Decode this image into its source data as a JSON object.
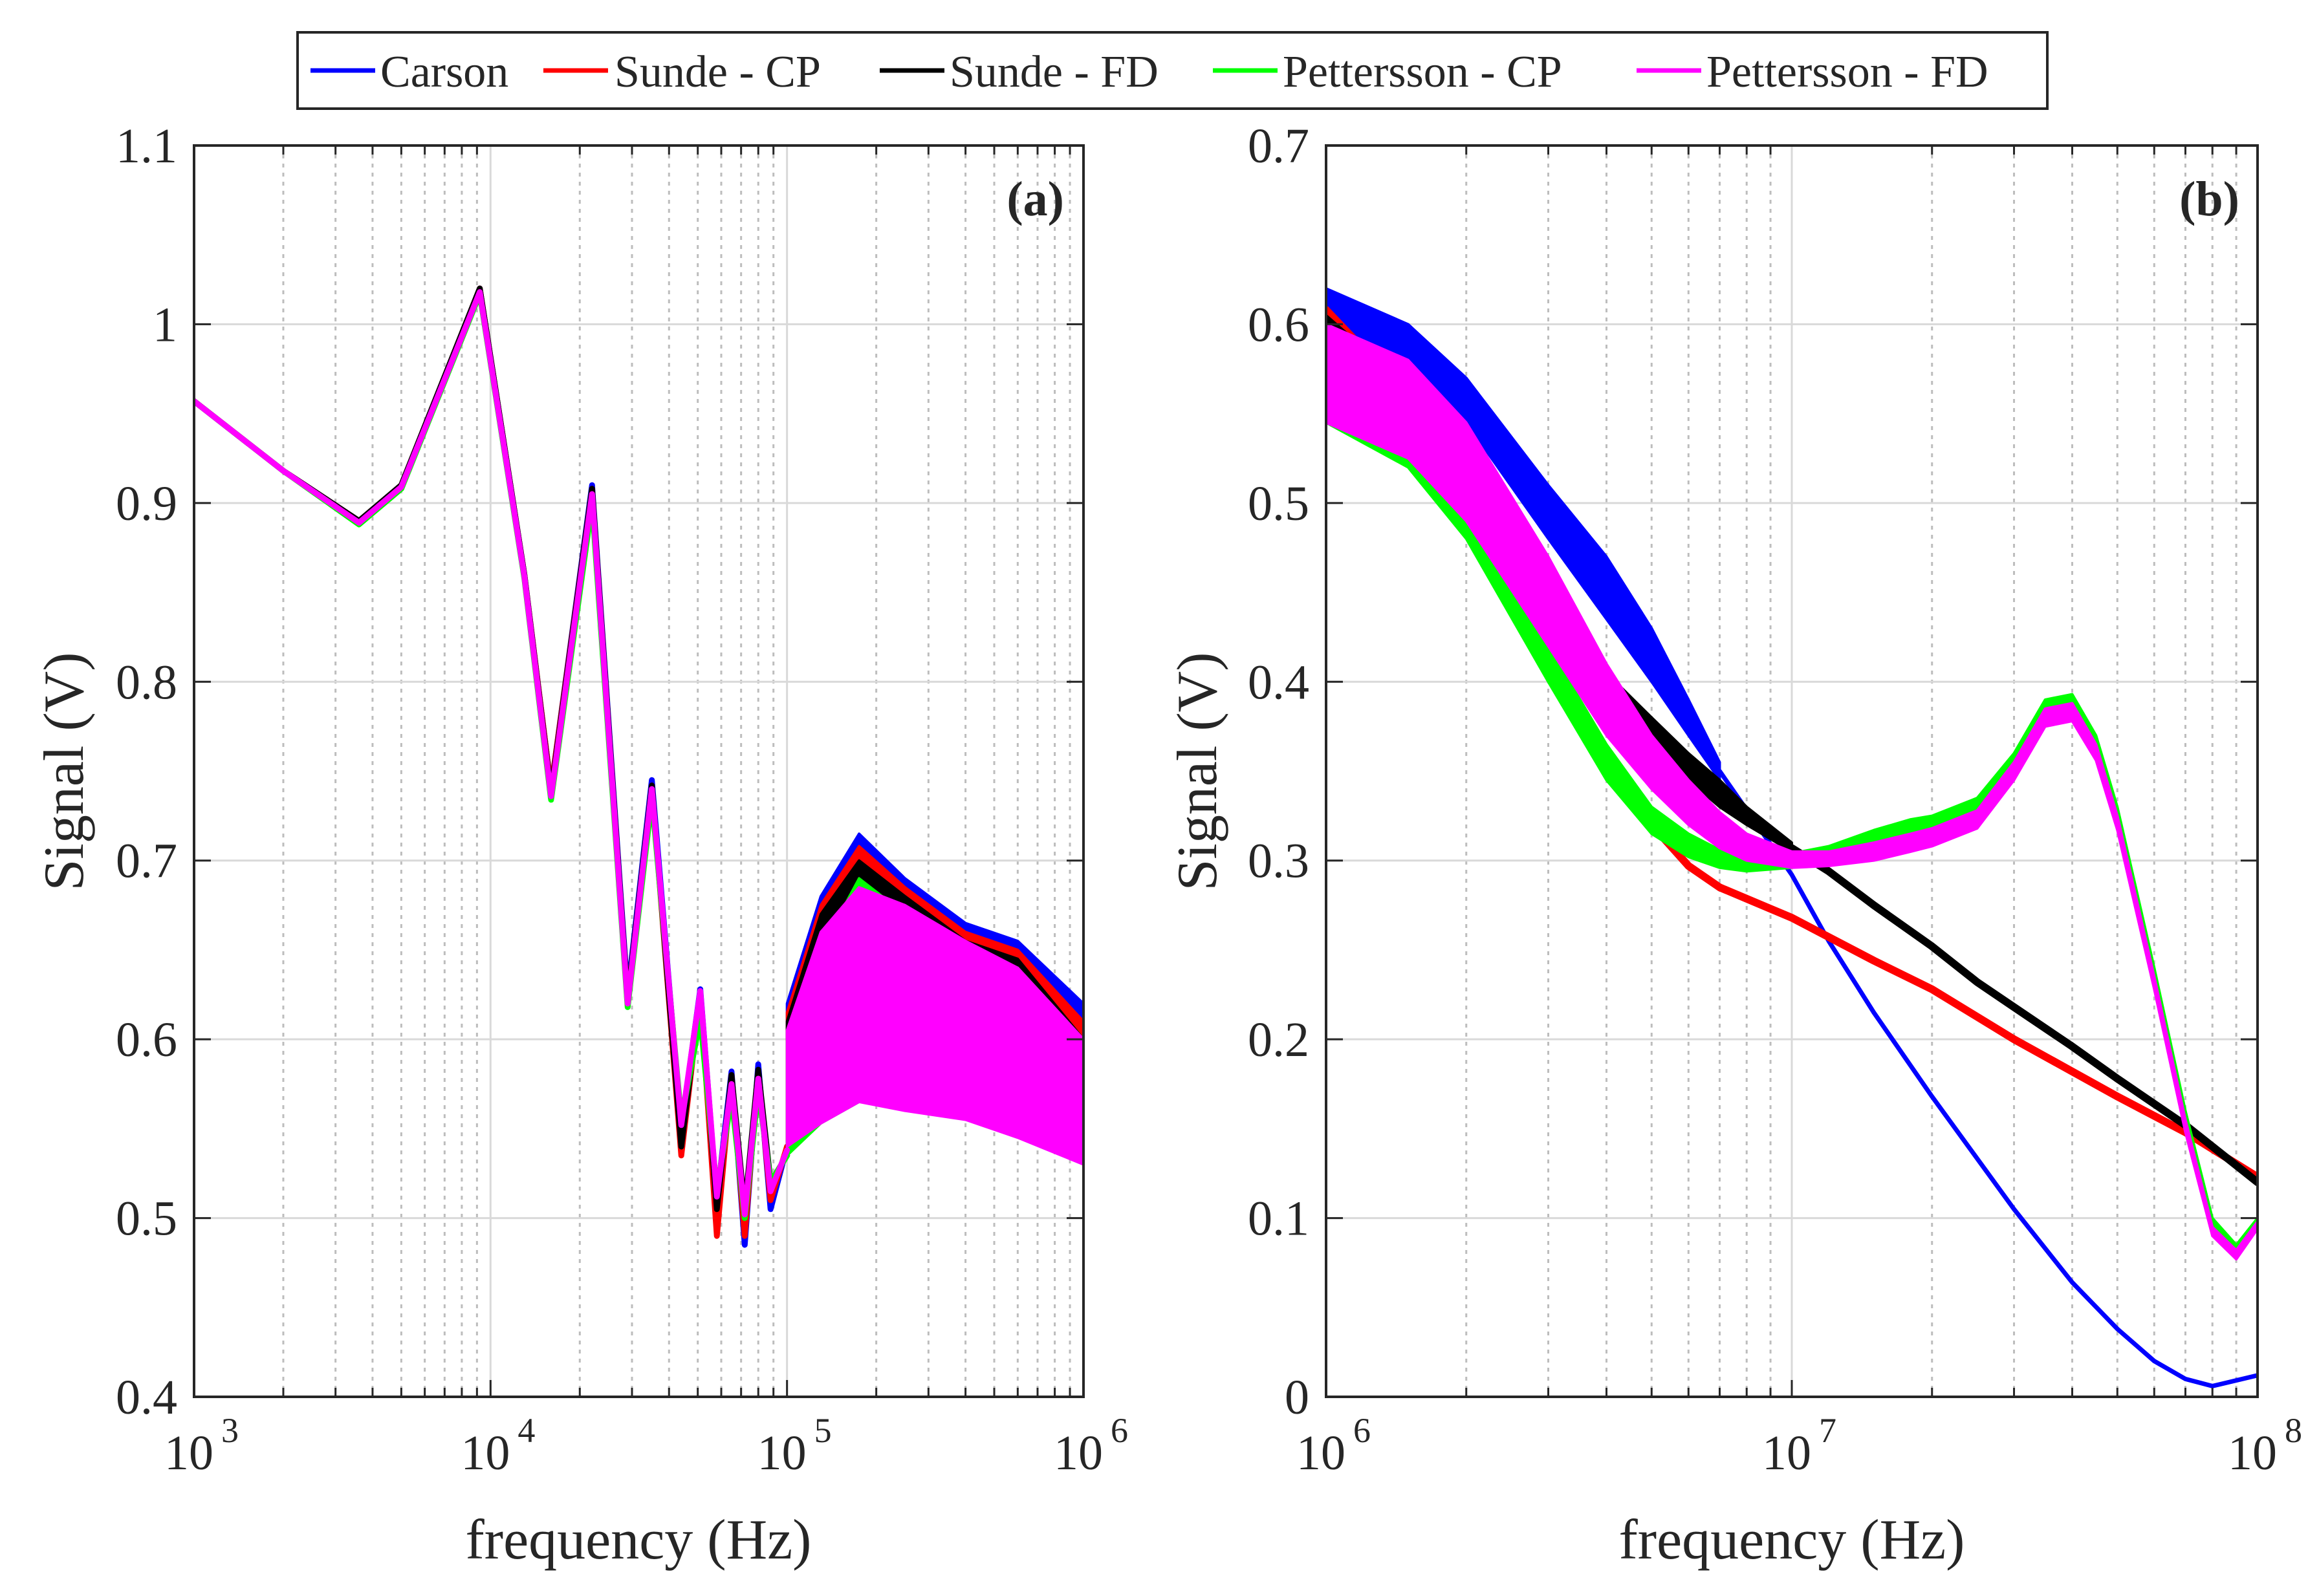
{
  "legend": [
    {
      "label": "Carson",
      "color": "#0000ff"
    },
    {
      "label": "Sunde - CP",
      "color": "#ff0000"
    },
    {
      "label": "Sunde - FD",
      "color": "#000000"
    },
    {
      "label": "Pettersson - CP",
      "color": "#00ff00"
    },
    {
      "label": "Pettersson - FD",
      "color": "#ff00ff"
    }
  ],
  "chart_data": [
    {
      "type": "line",
      "panel": "(a)",
      "xlabel": "frequency (Hz)",
      "ylabel": "Signal (V)",
      "xscale": "log",
      "xlim": [
        1000,
        1000000
      ],
      "ylim": [
        0.4,
        1.1
      ],
      "xticks": [
        {
          "value": 1000,
          "mantissa": "10",
          "exp": "3"
        },
        {
          "value": 10000,
          "mantissa": "10",
          "exp": "4"
        },
        {
          "value": 100000,
          "mantissa": "10",
          "exp": "5"
        },
        {
          "value": 1000000,
          "mantissa": "10",
          "exp": "6"
        }
      ],
      "yticks": [
        {
          "value": 0.4,
          "label": "0.4"
        },
        {
          "value": 0.5,
          "label": "0.5"
        },
        {
          "value": 0.6,
          "label": "0.6"
        },
        {
          "value": 0.7,
          "label": "0.7"
        },
        {
          "value": 0.8,
          "label": "0.8"
        },
        {
          "value": 0.9,
          "label": "0.9"
        },
        {
          "value": 1.0,
          "label": "1"
        },
        {
          "value": 1.1,
          "label": "1.1"
        }
      ],
      "grid": true,
      "series": [
        {
          "name": "Carson",
          "color": "#0000ff",
          "width": 9,
          "x": [
            1000,
            2000,
            3600,
            5000,
            9200,
            13000,
            16000,
            22000,
            29000,
            35000,
            44000,
            51000,
            58000,
            65000,
            72000,
            80000,
            88000,
            100000
          ],
          "y": [
            0.957,
            0.918,
            0.89,
            0.91,
            1.02,
            0.86,
            0.74,
            0.91,
            0.625,
            0.745,
            0.55,
            0.628,
            0.51,
            0.582,
            0.485,
            0.586,
            0.505,
            0.54
          ],
          "band": {
            "x": [
              100000,
              130000,
              175000,
              250000,
              400000,
              600000,
              1000000
            ],
            "upper": [
              0.62,
              0.68,
              0.715,
              0.69,
              0.665,
              0.655,
              0.62
            ],
            "lower": [
              0.54,
              0.56,
              0.575,
              0.578,
              0.578,
              0.57,
              0.552
            ]
          }
        },
        {
          "name": "Sunde - CP",
          "color": "#ff0000",
          "width": 9,
          "x": [
            1000,
            2000,
            3600,
            5000,
            9200,
            13000,
            16000,
            22000,
            29000,
            35000,
            44000,
            51000,
            58000,
            65000,
            72000,
            80000,
            88000,
            100000
          ],
          "y": [
            0.957,
            0.918,
            0.89,
            0.91,
            1.02,
            0.86,
            0.74,
            0.908,
            0.622,
            0.742,
            0.535,
            0.625,
            0.49,
            0.58,
            0.49,
            0.582,
            0.51,
            0.54
          ],
          "band": {
            "x": [
              100000,
              130000,
              175000,
              250000,
              400000,
              600000,
              1000000
            ],
            "upper": [
              0.615,
              0.675,
              0.708,
              0.685,
              0.66,
              0.65,
              0.61
            ],
            "lower": [
              0.54,
              0.56,
              0.573,
              0.576,
              0.576,
              0.568,
              0.55
            ]
          }
        },
        {
          "name": "Sunde - FD",
          "color": "#000000",
          "width": 9,
          "x": [
            1000,
            2000,
            3600,
            5000,
            9200,
            13000,
            16000,
            22000,
            29000,
            35000,
            44000,
            51000,
            58000,
            65000,
            72000,
            80000,
            88000,
            100000
          ],
          "y": [
            0.957,
            0.918,
            0.89,
            0.91,
            1.02,
            0.86,
            0.738,
            0.908,
            0.622,
            0.742,
            0.54,
            0.626,
            0.505,
            0.58,
            0.505,
            0.583,
            0.52,
            0.535
          ],
          "band": {
            "x": [
              100000,
              130000,
              175000,
              250000,
              400000,
              600000,
              1000000
            ],
            "upper": [
              0.61,
              0.67,
              0.7,
              0.68,
              0.655,
              0.645,
              0.6
            ],
            "lower": [
              0.535,
              0.558,
              0.57,
              0.574,
              0.574,
              0.566,
              0.55
            ]
          }
        },
        {
          "name": "Pettersson - CP",
          "color": "#00ff00",
          "width": 9,
          "x": [
            1000,
            2000,
            3600,
            5000,
            9200,
            13000,
            16000,
            22000,
            29000,
            35000,
            44000,
            51000,
            58000,
            65000,
            72000,
            80000,
            88000,
            100000
          ],
          "y": [
            0.957,
            0.918,
            0.888,
            0.908,
            1.017,
            0.858,
            0.734,
            0.9,
            0.618,
            0.735,
            0.555,
            0.612,
            0.515,
            0.568,
            0.5,
            0.572,
            0.52,
            0.535
          ],
          "band": {
            "x": [
              100000,
              130000,
              175000,
              250000,
              400000,
              600000,
              1000000
            ],
            "upper": [
              0.6,
              0.65,
              0.69,
              0.67,
              0.65,
              0.64,
              0.6
            ],
            "lower": [
              0.535,
              0.553,
              0.565,
              0.565,
              0.56,
              0.552,
              0.535
            ]
          }
        },
        {
          "name": "Pettersson - FD",
          "color": "#ff00ff",
          "width": 9,
          "x": [
            1000,
            2000,
            3600,
            5000,
            9200,
            13000,
            16000,
            22000,
            29000,
            35000,
            44000,
            51000,
            58000,
            65000,
            72000,
            80000,
            88000,
            100000
          ],
          "y": [
            0.957,
            0.918,
            0.889,
            0.909,
            1.018,
            0.859,
            0.736,
            0.905,
            0.62,
            0.74,
            0.552,
            0.627,
            0.512,
            0.575,
            0.502,
            0.578,
            0.515,
            0.538
          ],
          "band": {
            "x": [
              100000,
              130000,
              175000,
              250000,
              400000,
              600000,
              1000000
            ],
            "upper": [
              0.605,
              0.66,
              0.685,
              0.675,
              0.655,
              0.64,
              0.6
            ],
            "lower": [
              0.54,
              0.553,
              0.565,
              0.56,
              0.555,
              0.545,
              0.53
            ]
          }
        }
      ]
    },
    {
      "type": "line",
      "panel": "(b)",
      "xlabel": "frequency (Hz)",
      "ylabel": "Signal (V)",
      "xscale": "log",
      "xlim": [
        1000000,
        100000000
      ],
      "ylim": [
        0,
        0.7
      ],
      "xticks": [
        {
          "value": 1000000,
          "mantissa": "10",
          "exp": "6"
        },
        {
          "value": 10000000,
          "mantissa": "10",
          "exp": "7"
        },
        {
          "value": 100000000,
          "mantissa": "10",
          "exp": "8"
        }
      ],
      "yticks": [
        {
          "value": 0,
          "label": "0"
        },
        {
          "value": 0.1,
          "label": "0.1"
        },
        {
          "value": 0.2,
          "label": "0.2"
        },
        {
          "value": 0.3,
          "label": "0.3"
        },
        {
          "value": 0.4,
          "label": "0.4"
        },
        {
          "value": 0.5,
          "label": "0.5"
        },
        {
          "value": 0.6,
          "label": "0.6"
        },
        {
          "value": 0.7,
          "label": "0.7"
        }
      ],
      "grid": true,
      "series": [
        {
          "name": "Carson",
          "color": "#0000ff",
          "width": 7,
          "band": {
            "x": [
              1000000,
              1500000,
              2000000,
              3000000,
              4000000,
              5000000,
              6000000,
              7000000
            ],
            "upper": [
              0.62,
              0.6,
              0.57,
              0.51,
              0.47,
              0.43,
              0.39,
              0.355
            ],
            "lower": [
              0.595,
              0.575,
              0.545,
              0.48,
              0.435,
              0.4,
              0.37,
              0.345
            ]
          },
          "x": [
            7000000,
            10000000,
            12000000,
            15000000,
            20000000,
            30000000,
            40000000,
            50000000,
            60000000,
            70000000,
            80000000,
            100000000
          ],
          "y": [
            0.35,
            0.292,
            0.255,
            0.215,
            0.168,
            0.105,
            0.064,
            0.038,
            0.02,
            0.01,
            0.006,
            0.012
          ]
        },
        {
          "name": "Sunde - CP",
          "color": "#ff0000",
          "width": 12,
          "x": [
            1000000,
            1500000,
            2000000,
            3000000,
            4000000,
            5000000,
            6000000,
            7000000,
            10000000,
            15000000,
            20000000,
            30000000,
            50000000,
            70000000,
            100000000
          ],
          "y": [
            0.608,
            0.56,
            0.5,
            0.415,
            0.36,
            0.32,
            0.297,
            0.285,
            0.268,
            0.244,
            0.228,
            0.2,
            0.168,
            0.148,
            0.123
          ]
        },
        {
          "name": "Sunde - FD",
          "color": "#000000",
          "width": 12,
          "band": {
            "x": [
              1000000,
              1500000,
              2000000,
              3000000,
              4000000,
              5000000,
              6000000,
              7000000,
              8000000,
              10000000
            ],
            "upper": [
              0.605,
              0.565,
              0.515,
              0.45,
              0.405,
              0.38,
              0.36,
              0.345,
              0.33,
              0.31
            ],
            "lower": [
              0.59,
              0.55,
              0.5,
              0.43,
              0.385,
              0.36,
              0.345,
              0.33,
              0.32,
              0.305
            ]
          },
          "x": [
            10000000,
            12000000,
            15000000,
            20000000,
            25000000,
            30000000,
            40000000,
            50000000,
            70000000,
            100000000
          ],
          "y": [
            0.307,
            0.294,
            0.275,
            0.252,
            0.232,
            0.218,
            0.196,
            0.178,
            0.152,
            0.12
          ]
        },
        {
          "name": "Pettersson - CP",
          "color": "#00ff00",
          "width": 8,
          "band": {
            "x": [
              1000000,
              1500000,
              2000000,
              3000000,
              4000000,
              5000000,
              6000000,
              7000000,
              8000000,
              10000000,
              12000000,
              15000000,
              18000000,
              20000000,
              25000000,
              30000000,
              35000000,
              40000000,
              45000000,
              50000000,
              60000000,
              70000000,
              80000000,
              90000000,
              100000000
            ],
            "upper": [
              0.565,
              0.54,
              0.5,
              0.42,
              0.365,
              0.33,
              0.315,
              0.306,
              0.302,
              0.304,
              0.308,
              0.317,
              0.323,
              0.325,
              0.335,
              0.36,
              0.39,
              0.393,
              0.37,
              0.33,
              0.24,
              0.16,
              0.1,
              0.085,
              0.1
            ],
            "lower": [
              0.545,
              0.52,
              0.48,
              0.4,
              0.345,
              0.315,
              0.302,
              0.296,
              0.294,
              0.296,
              0.302,
              0.308,
              0.313,
              0.316,
              0.325,
              0.35,
              0.38,
              0.384,
              0.362,
              0.322,
              0.232,
              0.152,
              0.093,
              0.078,
              0.094
            ]
          }
        },
        {
          "name": "Pettersson - FD",
          "color": "#ff00ff",
          "width": 8,
          "band": {
            "x": [
              1000000,
              1500000,
              2000000,
              3000000,
              4000000,
              5000000,
              6000000,
              7000000,
              8000000,
              10000000,
              12000000,
              15000000,
              18000000,
              20000000,
              25000000,
              30000000,
              35000000,
              40000000,
              45000000,
              50000000,
              60000000,
              70000000,
              80000000,
              90000000,
              100000000
            ],
            "upper": [
              0.6,
              0.58,
              0.545,
              0.47,
              0.41,
              0.37,
              0.345,
              0.327,
              0.315,
              0.305,
              0.305,
              0.31,
              0.315,
              0.318,
              0.328,
              0.355,
              0.385,
              0.388,
              0.365,
              0.325,
              0.235,
              0.155,
              0.095,
              0.082,
              0.098
            ],
            "lower": [
              0.545,
              0.525,
              0.49,
              0.42,
              0.37,
              0.34,
              0.32,
              0.307,
              0.3,
              0.296,
              0.297,
              0.3,
              0.305,
              0.308,
              0.318,
              0.345,
              0.375,
              0.378,
              0.356,
              0.317,
              0.228,
              0.148,
              0.09,
              0.077,
              0.094
            ]
          }
        }
      ]
    }
  ]
}
